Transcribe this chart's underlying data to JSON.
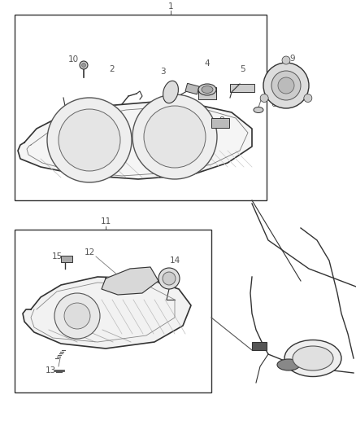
{
  "bg_color": "#ffffff",
  "fig_width": 4.38,
  "fig_height": 5.33,
  "dpi": 100,
  "label_fontsize": 7.5,
  "label_color": "#555555",
  "line_color": "#333333"
}
